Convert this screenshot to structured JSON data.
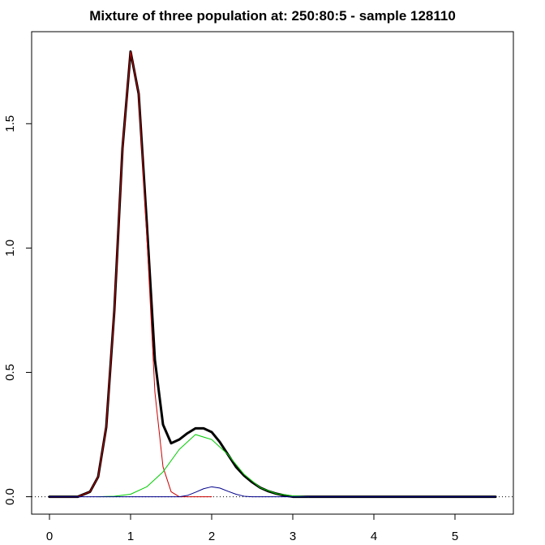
{
  "chart_data": {
    "type": "line",
    "title": "Mixture of three population at: 250:80:5  - sample 128110",
    "xlabel": "",
    "ylabel": "",
    "xlim": [
      -0.22,
      5.72
    ],
    "ylim": [
      -0.07,
      1.87
    ],
    "x_ticks": [
      0,
      1,
      2,
      3,
      4,
      5
    ],
    "y_ticks": [
      0.0,
      0.5,
      1.0,
      1.5
    ],
    "x_tick_labels": [
      "0",
      "1",
      "2",
      "3",
      "4",
      "5"
    ],
    "y_tick_labels": [
      "0.0",
      "0.5",
      "1.0",
      "1.5"
    ],
    "reference_line": {
      "y": 0,
      "style": "dotted",
      "color": "#000000"
    },
    "grid": false,
    "legend": null,
    "series": [
      {
        "color": "#000000",
        "line_width": 3,
        "points": [
          [
            0,
            0
          ],
          [
            0.35,
            0.0
          ],
          [
            0.5,
            0.02
          ],
          [
            0.6,
            0.08
          ],
          [
            0.7,
            0.28
          ],
          [
            0.8,
            0.75
          ],
          [
            0.9,
            1.4
          ],
          [
            1.0,
            1.79
          ],
          [
            1.1,
            1.62
          ],
          [
            1.2,
            1.1
          ],
          [
            1.3,
            0.55
          ],
          [
            1.4,
            0.29
          ],
          [
            1.5,
            0.215
          ],
          [
            1.6,
            0.23
          ],
          [
            1.7,
            0.255
          ],
          [
            1.8,
            0.275
          ],
          [
            1.9,
            0.275
          ],
          [
            2.0,
            0.26
          ],
          [
            2.1,
            0.22
          ],
          [
            2.2,
            0.17
          ],
          [
            2.3,
            0.12
          ],
          [
            2.4,
            0.085
          ],
          [
            2.5,
            0.058
          ],
          [
            2.6,
            0.036
          ],
          [
            2.7,
            0.022
          ],
          [
            2.8,
            0.012
          ],
          [
            2.9,
            0.005
          ],
          [
            3.0,
            0.0
          ],
          [
            5.5,
            0.0
          ]
        ]
      },
      {
        "color": "#cc0000",
        "line_width": 1,
        "points": [
          [
            0,
            0
          ],
          [
            0.35,
            0.0
          ],
          [
            0.5,
            0.02
          ],
          [
            0.6,
            0.08
          ],
          [
            0.7,
            0.28
          ],
          [
            0.8,
            0.75
          ],
          [
            0.9,
            1.4
          ],
          [
            1.0,
            1.79
          ],
          [
            1.1,
            1.62
          ],
          [
            1.2,
            1.05
          ],
          [
            1.3,
            0.42
          ],
          [
            1.4,
            0.12
          ],
          [
            1.5,
            0.02
          ],
          [
            1.6,
            0.0
          ],
          [
            2.0,
            0.0
          ]
        ]
      },
      {
        "color": "#00cc00",
        "line_width": 1,
        "points": [
          [
            0.6,
            0.0
          ],
          [
            0.8,
            0.002
          ],
          [
            1.0,
            0.01
          ],
          [
            1.2,
            0.04
          ],
          [
            1.4,
            0.1
          ],
          [
            1.6,
            0.19
          ],
          [
            1.8,
            0.25
          ],
          [
            2.0,
            0.23
          ],
          [
            2.2,
            0.17
          ],
          [
            2.4,
            0.09
          ],
          [
            2.6,
            0.036
          ],
          [
            2.8,
            0.012
          ],
          [
            3.0,
            0.003
          ],
          [
            3.2,
            0.0
          ]
        ]
      },
      {
        "color": "#00008b",
        "line_width": 1,
        "points": [
          [
            0,
            0
          ],
          [
            1.6,
            0.0
          ],
          [
            1.7,
            0.005
          ],
          [
            1.8,
            0.018
          ],
          [
            1.9,
            0.032
          ],
          [
            2.0,
            0.04
          ],
          [
            2.1,
            0.035
          ],
          [
            2.2,
            0.022
          ],
          [
            2.3,
            0.01
          ],
          [
            2.4,
            0.002
          ],
          [
            2.5,
            0.0
          ],
          [
            5.5,
            0.0
          ]
        ]
      }
    ]
  }
}
